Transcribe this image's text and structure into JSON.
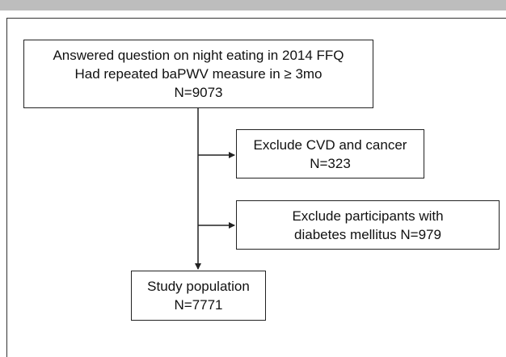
{
  "boxes": {
    "main": {
      "line1": "Answered question on night eating in 2014 FFQ",
      "line2": "Had repeated baPWV measure in ≥ 3mo",
      "line3": "N=9073"
    },
    "exclude_cvd": {
      "line1": "Exclude CVD and cancer",
      "line2": "N=323"
    },
    "exclude_diabetes": {
      "line1": "Exclude participants with",
      "line2": "diabetes mellitus N=979"
    },
    "study_population": {
      "line1": "Study population",
      "line2": "N=7771"
    }
  },
  "colors": {
    "header_bar": "#bdbdbd",
    "line": "#222222"
  }
}
